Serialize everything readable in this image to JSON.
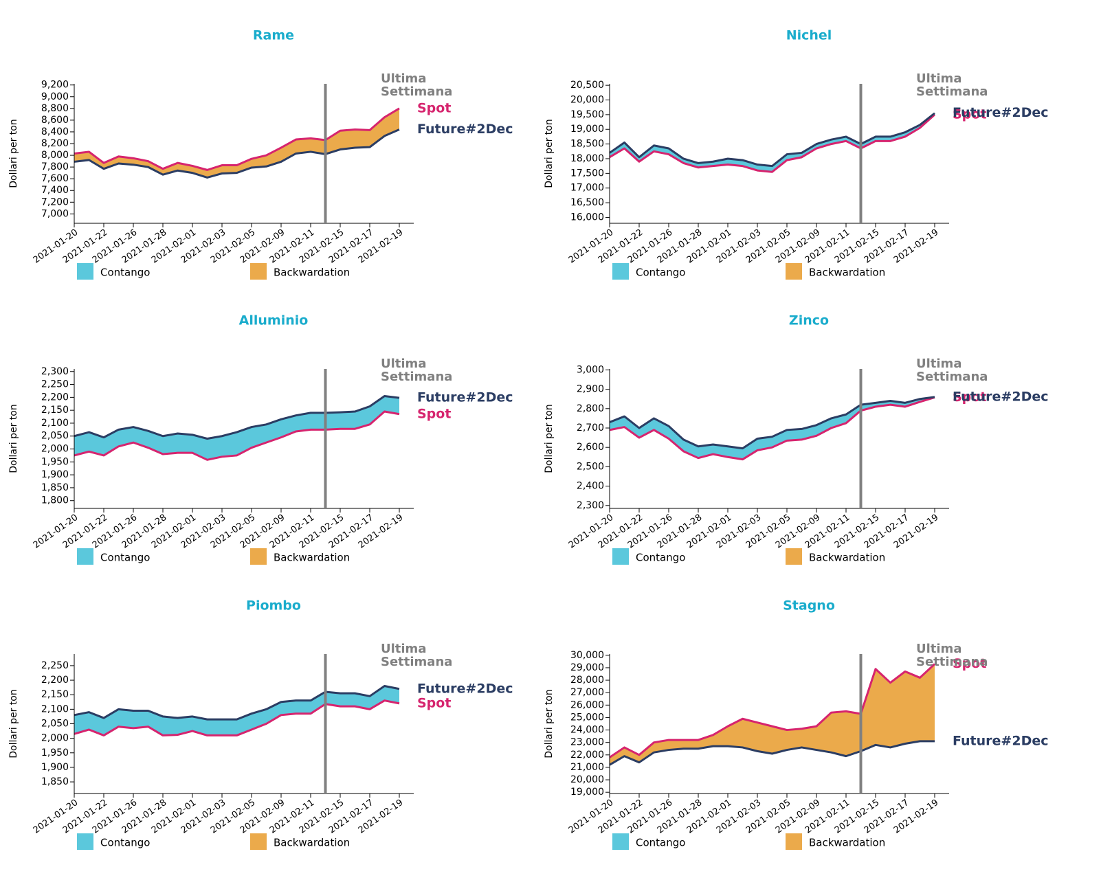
{
  "chart_data": [
    {
      "type": "line",
      "title": "Rame",
      "ylabel": "Dollari per ton",
      "categories": [
        "2021-01-20",
        null,
        "2021-01-22",
        null,
        "2021-01-26",
        null,
        "2021-01-28",
        null,
        "2021-02-01",
        null,
        "2021-02-03",
        null,
        "2021-02-05",
        null,
        "2021-02-09",
        null,
        "2021-02-11",
        null,
        "2021-02-15",
        null,
        "2021-02-17",
        null,
        "2021-02-19"
      ],
      "series": [
        {
          "name": "Spot",
          "color": "#d6246e",
          "values": [
            8030,
            8060,
            7870,
            7980,
            7950,
            7900,
            7770,
            7870,
            7820,
            7750,
            7830,
            7830,
            7940,
            8000,
            8130,
            8270,
            8290,
            8260,
            8420,
            8440,
            8430,
            8650,
            8800
          ]
        },
        {
          "name": "Future#2Dec",
          "color": "#2b3d63",
          "values": [
            7890,
            7920,
            7770,
            7860,
            7840,
            7800,
            7670,
            7740,
            7700,
            7620,
            7690,
            7700,
            7790,
            7810,
            7890,
            8030,
            8060,
            8020,
            8100,
            8130,
            8140,
            8330,
            8440
          ]
        }
      ],
      "ylim": [
        6840,
        9220
      ],
      "yticks": [
        {
          "value": 7000,
          "label": "7,000"
        },
        {
          "value": 7200,
          "label": "7,200"
        },
        {
          "value": 7400,
          "label": "7,400"
        },
        {
          "value": 7600,
          "label": "7,600"
        },
        {
          "value": 7800,
          "label": "7,800"
        },
        {
          "value": 8000,
          "label": "8,000"
        },
        {
          "value": 8200,
          "label": "8,200"
        },
        {
          "value": 8400,
          "label": "8,400"
        },
        {
          "value": 8600,
          "label": "8,600"
        },
        {
          "value": 8800,
          "label": "8,800"
        },
        {
          "value": 9000,
          "label": "9,000"
        },
        {
          "value": 9200,
          "label": "9,200"
        }
      ],
      "annotation": {
        "lines": [
          "Ultima",
          "Settimana"
        ],
        "at": 17
      },
      "legend": [
        {
          "label": "Contango",
          "color": "#5bc8dc"
        },
        {
          "label": "Backwardation",
          "color": "#ebaa4b"
        }
      ]
    },
    {
      "type": "line",
      "title": "Nichel",
      "ylabel": "Dollari per ton",
      "categories": [
        "2021-01-20",
        null,
        "2021-01-22",
        null,
        "2021-01-26",
        null,
        "2021-01-28",
        null,
        "2021-02-01",
        null,
        "2021-02-03",
        null,
        "2021-02-05",
        null,
        "2021-02-09",
        null,
        "2021-02-11",
        null,
        "2021-02-15",
        null,
        "2021-02-17",
        null,
        "2021-02-19"
      ],
      "series": [
        {
          "name": "Spot",
          "color": "#d6246e",
          "values": [
            18050,
            18350,
            17900,
            18250,
            18150,
            17850,
            17700,
            17750,
            17800,
            17750,
            17600,
            17550,
            17950,
            18050,
            18350,
            18500,
            18600,
            18350,
            18600,
            18600,
            18750,
            19050,
            19500
          ]
        },
        {
          "name": "Future#2Dec",
          "color": "#2b3d63",
          "values": [
            18200,
            18550,
            18050,
            18450,
            18350,
            18000,
            17850,
            17900,
            18000,
            17950,
            17800,
            17750,
            18150,
            18200,
            18500,
            18650,
            18750,
            18500,
            18750,
            18750,
            18900,
            19150,
            19550
          ]
        }
      ],
      "ylim": [
        15800,
        20550
      ],
      "yticks": [
        {
          "value": 16000,
          "label": "16,000"
        },
        {
          "value": 16500,
          "label": "16,500"
        },
        {
          "value": 17000,
          "label": "17,000"
        },
        {
          "value": 17500,
          "label": "17,500"
        },
        {
          "value": 18000,
          "label": "18,000"
        },
        {
          "value": 18500,
          "label": "18,500"
        },
        {
          "value": 19000,
          "label": "19,000"
        },
        {
          "value": 19500,
          "label": "19,500"
        },
        {
          "value": 20000,
          "label": "20,000"
        },
        {
          "value": 20500,
          "label": "20,500"
        }
      ],
      "annotation": {
        "lines": [
          "Ultima",
          "Settimana"
        ],
        "at": 17
      },
      "legend": [
        {
          "label": "Contango",
          "color": "#5bc8dc"
        },
        {
          "label": "Backwardation",
          "color": "#ebaa4b"
        }
      ]
    },
    {
      "type": "line",
      "title": "Alluminio",
      "ylabel": "Dollari per ton",
      "categories": [
        "2021-01-20",
        null,
        "2021-01-22",
        null,
        "2021-01-26",
        null,
        "2021-01-28",
        null,
        "2021-02-01",
        null,
        "2021-02-03",
        null,
        "2021-02-05",
        null,
        "2021-02-09",
        null,
        "2021-02-11",
        null,
        "2021-02-15",
        null,
        "2021-02-17",
        null,
        "2021-02-19"
      ],
      "series": [
        {
          "name": "Spot",
          "color": "#d6246e",
          "values": [
            1975,
            1990,
            1975,
            2010,
            2025,
            2005,
            1980,
            1985,
            1985,
            1958,
            1970,
            1975,
            2005,
            2025,
            2045,
            2068,
            2075,
            2075,
            2078,
            2078,
            2095,
            2145,
            2135
          ]
        },
        {
          "name": "Future#2Dec",
          "color": "#2b3d63",
          "values": [
            2050,
            2065,
            2045,
            2075,
            2085,
            2070,
            2050,
            2060,
            2055,
            2040,
            2050,
            2065,
            2085,
            2095,
            2115,
            2130,
            2140,
            2140,
            2142,
            2145,
            2165,
            2205,
            2198
          ]
        }
      ],
      "ylim": [
        1770,
        2310
      ],
      "yticks": [
        {
          "value": 1800,
          "label": "1,800"
        },
        {
          "value": 1850,
          "label": "1,850"
        },
        {
          "value": 1900,
          "label": "1,900"
        },
        {
          "value": 1950,
          "label": "1,950"
        },
        {
          "value": 2000,
          "label": "2,000"
        },
        {
          "value": 2050,
          "label": "2,050"
        },
        {
          "value": 2100,
          "label": "2,100"
        },
        {
          "value": 2150,
          "label": "2,150"
        },
        {
          "value": 2200,
          "label": "2,200"
        },
        {
          "value": 2250,
          "label": "2,250"
        },
        {
          "value": 2300,
          "label": "2,300"
        }
      ],
      "annotation": {
        "lines": [
          "Ultima",
          "Settimana"
        ],
        "at": 17
      },
      "legend": [
        {
          "label": "Contango",
          "color": "#5bc8dc"
        },
        {
          "label": "Backwardation",
          "color": "#ebaa4b"
        }
      ]
    },
    {
      "type": "line",
      "title": "Zinco",
      "ylabel": "Dollari per ton",
      "categories": [
        "2021-01-20",
        null,
        "2021-01-22",
        null,
        "2021-01-26",
        null,
        "2021-01-28",
        null,
        "2021-02-01",
        null,
        "2021-02-03",
        null,
        "2021-02-05",
        null,
        "2021-02-09",
        null,
        "2021-02-11",
        null,
        "2021-02-15",
        null,
        "2021-02-17",
        null,
        "2021-02-19"
      ],
      "series": [
        {
          "name": "Spot",
          "color": "#d6246e",
          "values": [
            2690,
            2705,
            2650,
            2690,
            2645,
            2580,
            2545,
            2565,
            2550,
            2538,
            2585,
            2600,
            2635,
            2640,
            2660,
            2700,
            2725,
            2790,
            2810,
            2820,
            2810,
            2835,
            2858
          ]
        },
        {
          "name": "Future#2Dec",
          "color": "#2b3d63",
          "values": [
            2730,
            2760,
            2700,
            2750,
            2710,
            2640,
            2605,
            2615,
            2605,
            2595,
            2645,
            2655,
            2690,
            2695,
            2715,
            2750,
            2770,
            2820,
            2830,
            2840,
            2830,
            2850,
            2860
          ]
        }
      ],
      "ylim": [
        2285,
        3005
      ],
      "yticks": [
        {
          "value": 2300,
          "label": "2,300"
        },
        {
          "value": 2400,
          "label": "2,400"
        },
        {
          "value": 2500,
          "label": "2,500"
        },
        {
          "value": 2600,
          "label": "2,600"
        },
        {
          "value": 2700,
          "label": "2,700"
        },
        {
          "value": 2800,
          "label": "2,800"
        },
        {
          "value": 2900,
          "label": "2,900"
        },
        {
          "value": 3000,
          "label": "3,000"
        }
      ],
      "annotation": {
        "lines": [
          "Ultima",
          "Settimana"
        ],
        "at": 17
      },
      "legend": [
        {
          "label": "Contango",
          "color": "#5bc8dc"
        },
        {
          "label": "Backwardation",
          "color": "#ebaa4b"
        }
      ]
    },
    {
      "type": "line",
      "title": "Piombo",
      "ylabel": "Dollari per ton",
      "categories": [
        "2021-01-20",
        null,
        "2021-01-22",
        null,
        "2021-01-26",
        null,
        "2021-01-28",
        null,
        "2021-02-01",
        null,
        "2021-02-03",
        null,
        "2021-02-05",
        null,
        "2021-02-09",
        null,
        "2021-02-11",
        null,
        "2021-02-15",
        null,
        "2021-02-17",
        null,
        "2021-02-19"
      ],
      "series": [
        {
          "name": "Spot",
          "color": "#d6246e",
          "values": [
            2015,
            2030,
            2010,
            2040,
            2035,
            2040,
            2010,
            2012,
            2025,
            2010,
            2010,
            2010,
            2030,
            2050,
            2080,
            2085,
            2085,
            2118,
            2110,
            2110,
            2100,
            2130,
            2120
          ]
        },
        {
          "name": "Future#2Dec",
          "color": "#2b3d63",
          "values": [
            2080,
            2090,
            2070,
            2100,
            2095,
            2095,
            2075,
            2070,
            2075,
            2065,
            2065,
            2065,
            2085,
            2100,
            2125,
            2130,
            2130,
            2160,
            2155,
            2155,
            2145,
            2180,
            2170
          ]
        }
      ],
      "ylim": [
        1810,
        2290
      ],
      "yticks": [
        {
          "value": 1850,
          "label": "1,850"
        },
        {
          "value": 1900,
          "label": "1,900"
        },
        {
          "value": 1950,
          "label": "1,950"
        },
        {
          "value": 2000,
          "label": "2,000"
        },
        {
          "value": 2050,
          "label": "2,050"
        },
        {
          "value": 2100,
          "label": "2,100"
        },
        {
          "value": 2150,
          "label": "2,150"
        },
        {
          "value": 2200,
          "label": "2,200"
        },
        {
          "value": 2250,
          "label": "2,250"
        }
      ],
      "annotation": {
        "lines": [
          "Ultima",
          "Settimana"
        ],
        "at": 17
      },
      "legend": [
        {
          "label": "Contango",
          "color": "#5bc8dc"
        },
        {
          "label": "Backwardation",
          "color": "#ebaa4b"
        }
      ]
    },
    {
      "type": "line",
      "title": "Stagno",
      "ylabel": "Dollari per ton",
      "categories": [
        "2021-01-20",
        null,
        "2021-01-22",
        null,
        "2021-01-26",
        null,
        "2021-01-28",
        null,
        "2021-02-01",
        null,
        "2021-02-03",
        null,
        "2021-02-05",
        null,
        "2021-02-09",
        null,
        "2021-02-11",
        null,
        "2021-02-15",
        null,
        "2021-02-17",
        null,
        "2021-02-19"
      ],
      "series": [
        {
          "name": "Spot",
          "color": "#d6246e",
          "values": [
            21800,
            22600,
            22000,
            23000,
            23200,
            23200,
            23200,
            23600,
            24300,
            24900,
            24600,
            24300,
            24000,
            24100,
            24300,
            25400,
            25500,
            25300,
            28900,
            27800,
            28700,
            28200,
            29300
          ]
        },
        {
          "name": "Future#2Dec",
          "color": "#2b3d63",
          "values": [
            21200,
            21900,
            21400,
            22200,
            22400,
            22500,
            22500,
            22700,
            22700,
            22600,
            22300,
            22100,
            22400,
            22600,
            22400,
            22200,
            21900,
            22300,
            22800,
            22600,
            22900,
            23100,
            23100
          ]
        }
      ],
      "ylim": [
        18900,
        30100
      ],
      "yticks": [
        {
          "value": 19000,
          "label": "19,000"
        },
        {
          "value": 20000,
          "label": "20,000"
        },
        {
          "value": 21000,
          "label": "21,000"
        },
        {
          "value": 22000,
          "label": "22,000"
        },
        {
          "value": 23000,
          "label": "23,000"
        },
        {
          "value": 24000,
          "label": "24,000"
        },
        {
          "value": 25000,
          "label": "25,000"
        },
        {
          "value": 26000,
          "label": "26,000"
        },
        {
          "value": 27000,
          "label": "27,000"
        },
        {
          "value": 28000,
          "label": "28,000"
        },
        {
          "value": 29000,
          "label": "29,000"
        },
        {
          "value": 30000,
          "label": "30,000"
        }
      ],
      "annotation": {
        "lines": [
          "Ultima",
          "Settimana"
        ],
        "at": 17
      },
      "legend": [
        {
          "label": "Contango",
          "color": "#5bc8dc"
        },
        {
          "label": "Backwardation",
          "color": "#ebaa4b"
        }
      ]
    }
  ]
}
